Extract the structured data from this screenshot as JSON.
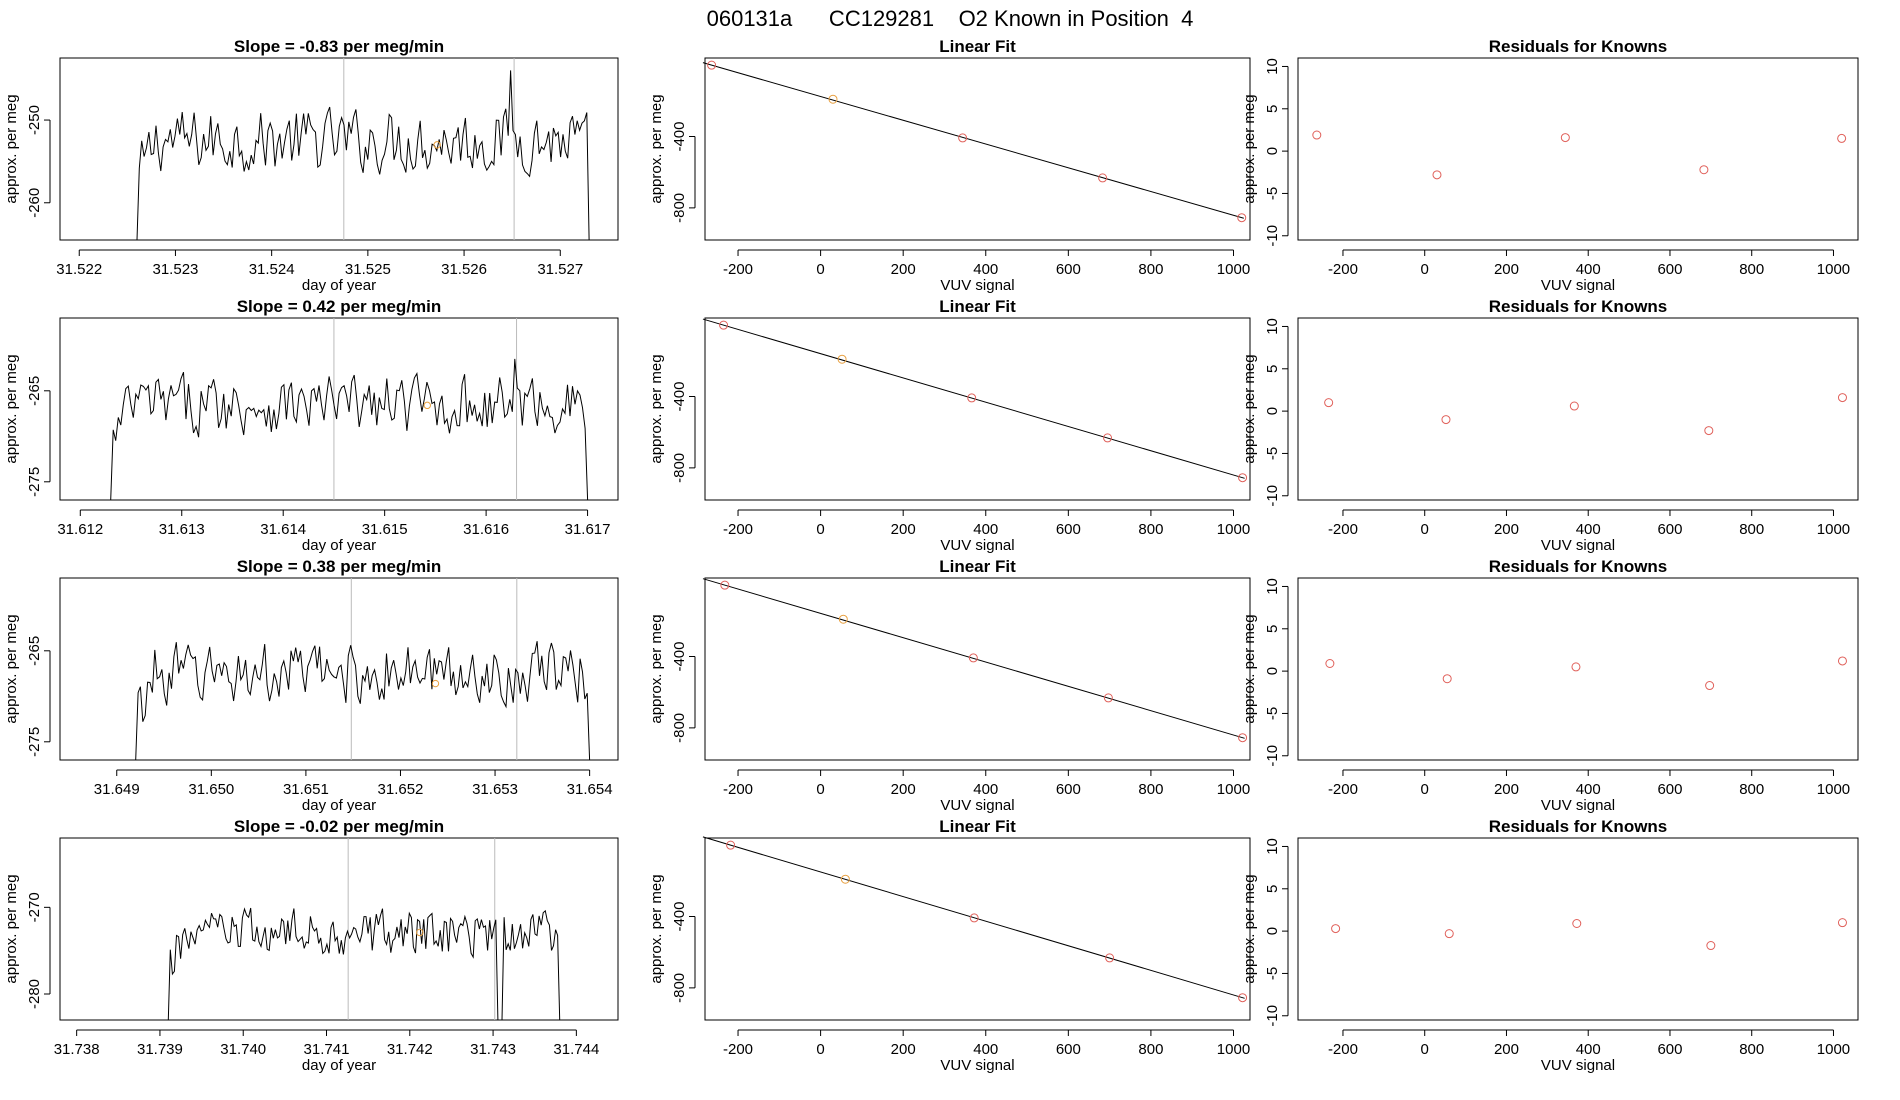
{
  "page_title": "060131a      CC129281    O2 Known in Position  4",
  "shared": {
    "ts_xlabel": "day of year",
    "ylabel": "approx. per meg",
    "fit_title": "Linear Fit",
    "fit_xlabel": "VUV signal",
    "resid_title": "Residuals for Knowns",
    "resid_xlabel": "VUV signal"
  },
  "colors": {
    "line": "#000000",
    "axis": "#000000",
    "marker": "#e0605a",
    "marker_orange": "#e8a040",
    "vline": "#bbbbbb"
  },
  "chart_data": [
    {
      "type": "line",
      "title": "Slope =  -0.83  per meg/min",
      "xlabel": "day of year",
      "ylabel": "approx. per meg",
      "xlim": [
        31.5218,
        31.5276
      ],
      "ylim": [
        -264.5,
        -242.5
      ],
      "xticks": [
        "31.522",
        "31.523",
        "31.524",
        "31.525",
        "31.526",
        "31.527"
      ],
      "yticks": [
        "-250",
        "-260"
      ],
      "x_start": 31.5226,
      "x_end": 31.5273,
      "series_level": -252.5,
      "noise_amp": 3.5,
      "vlines": [
        31.52475,
        31.52652
      ],
      "marker": [
        31.52572,
        -253.0
      ],
      "spikes": [
        [
          31.52648,
          -244.0
        ]
      ],
      "dips": []
    },
    {
      "type": "scatter_line",
      "title": "Linear Fit",
      "xlabel": "VUV signal",
      "ylabel": "approx. per meg",
      "xlim": [
        -280,
        1040
      ],
      "ylim": [
        -980,
        40
      ],
      "xticks": [
        -200,
        0,
        200,
        400,
        600,
        800,
        1000
      ],
      "yticks": [
        -400,
        -800
      ],
      "points": [
        [
          -264,
          0
        ],
        [
          30,
          -191
        ],
        [
          344,
          -408
        ],
        [
          683,
          -632
        ],
        [
          1020,
          -855
        ]
      ],
      "orange_index": 1
    },
    {
      "type": "scatter",
      "title": "Residuals for Knowns",
      "xlabel": "VUV signal",
      "ylabel": "approx. per meg",
      "xlim": [
        -310,
        1060
      ],
      "ylim": [
        -10.5,
        11
      ],
      "xticks": [
        -200,
        0,
        200,
        400,
        600,
        800,
        1000
      ],
      "yticks": [
        10,
        5,
        0,
        -5,
        -10
      ],
      "points": [
        [
          -264,
          1.9
        ],
        [
          30,
          -2.8
        ],
        [
          344,
          1.6
        ],
        [
          683,
          -2.2
        ],
        [
          1020,
          1.5
        ]
      ]
    },
    {
      "type": "line",
      "title": "Slope =  0.42  per meg/min",
      "xlabel": "day of year",
      "ylabel": "approx. per meg",
      "xlim": [
        31.6118,
        31.6173
      ],
      "ylim": [
        -277,
        -257
      ],
      "xticks": [
        "31.612",
        "31.613",
        "31.614",
        "31.615",
        "31.616",
        "31.617"
      ],
      "yticks": [
        "-265",
        "-275"
      ],
      "x_start": 31.6123,
      "x_end": 31.617,
      "series_level": -266.5,
      "noise_amp": 3.0,
      "vlines": [
        31.6145,
        31.6163
      ],
      "marker": [
        31.61542,
        -266.6
      ],
      "spikes": [
        [
          31.61628,
          -261.5
        ]
      ],
      "dips": []
    },
    {
      "type": "scatter_line",
      "title": "Linear Fit",
      "xlabel": "VUV signal",
      "ylabel": "approx. per meg",
      "xlim": [
        -280,
        1040
      ],
      "ylim": [
        -980,
        40
      ],
      "xticks": [
        -200,
        0,
        200,
        400,
        600,
        800,
        1000
      ],
      "yticks": [
        -400,
        -800
      ],
      "points": [
        [
          -235,
          0
        ],
        [
          52,
          -191
        ],
        [
          366,
          -408
        ],
        [
          695,
          -632
        ],
        [
          1022,
          -855
        ]
      ],
      "orange_index": 1
    },
    {
      "type": "scatter",
      "title": "Residuals for Knowns",
      "xlabel": "VUV signal",
      "ylabel": "approx. per meg",
      "xlim": [
        -310,
        1060
      ],
      "ylim": [
        -10.5,
        11
      ],
      "xticks": [
        -200,
        0,
        200,
        400,
        600,
        800,
        1000
      ],
      "yticks": [
        10,
        5,
        0,
        -5,
        -10
      ],
      "points": [
        [
          -235,
          1.0
        ],
        [
          52,
          -1.0
        ],
        [
          366,
          0.6
        ],
        [
          695,
          -2.3
        ],
        [
          1022,
          1.6
        ]
      ]
    },
    {
      "type": "line",
      "title": "Slope =  0.38  per meg/min",
      "xlabel": "day of year",
      "ylabel": "approx. per meg",
      "xlim": [
        31.6484,
        31.6543
      ],
      "ylim": [
        -277,
        -257
      ],
      "xticks": [
        "31.649",
        "31.650",
        "31.651",
        "31.652",
        "31.653",
        "31.654"
      ],
      "yticks": [
        "-265",
        "-275"
      ],
      "x_start": 31.6492,
      "x_end": 31.654,
      "series_level": -267.5,
      "noise_amp": 3.0,
      "vlines": [
        31.65148,
        31.65323
      ],
      "marker": [
        31.65237,
        -268.6
      ],
      "spikes": [],
      "dips": []
    },
    {
      "type": "scatter_line",
      "title": "Linear Fit",
      "xlabel": "VUV signal",
      "ylabel": "approx. per meg",
      "xlim": [
        -280,
        1040
      ],
      "ylim": [
        -980,
        40
      ],
      "xticks": [
        -200,
        0,
        200,
        400,
        600,
        800,
        1000
      ],
      "yticks": [
        -400,
        -800
      ],
      "points": [
        [
          -232,
          0
        ],
        [
          55,
          -191
        ],
        [
          370,
          -408
        ],
        [
          697,
          -632
        ],
        [
          1022,
          -855
        ]
      ],
      "orange_index": 1
    },
    {
      "type": "scatter",
      "title": "Residuals for Knowns",
      "xlabel": "VUV signal",
      "ylabel": "approx. per meg",
      "xlim": [
        -310,
        1060
      ],
      "ylim": [
        -10.5,
        11
      ],
      "xticks": [
        -200,
        0,
        200,
        400,
        600,
        800,
        1000
      ],
      "yticks": [
        10,
        5,
        0,
        -5,
        -10
      ],
      "points": [
        [
          -232,
          0.9
        ],
        [
          55,
          -0.9
        ],
        [
          370,
          0.5
        ],
        [
          697,
          -1.7
        ],
        [
          1022,
          1.2
        ]
      ]
    },
    {
      "type": "line",
      "title": "Slope =  -0.02  per meg/min",
      "xlabel": "day of year",
      "ylabel": "approx. per meg",
      "xlim": [
        31.7378,
        31.7445
      ],
      "ylim": [
        -283,
        -262
      ],
      "xticks": [
        "31.738",
        "31.739",
        "31.740",
        "31.741",
        "31.742",
        "31.743",
        "31.744"
      ],
      "yticks": [
        "-270",
        "-280"
      ],
      "x_start": 31.7391,
      "x_end": 31.7438,
      "series_level": -273.0,
      "noise_amp": 2.5,
      "vlines": [
        31.74126,
        31.74302
      ],
      "marker": [
        31.74212,
        -272.9
      ],
      "spikes": [],
      "dips": [
        [
          31.74308,
          -283.0
        ]
      ]
    },
    {
      "type": "scatter_line",
      "title": "Linear Fit",
      "xlabel": "VUV signal",
      "ylabel": "approx. per meg",
      "xlim": [
        -280,
        1040
      ],
      "ylim": [
        -980,
        40
      ],
      "xticks": [
        -200,
        0,
        200,
        400,
        600,
        800,
        1000
      ],
      "yticks": [
        -400,
        -800
      ],
      "points": [
        [
          -218,
          0
        ],
        [
          60,
          -191
        ],
        [
          372,
          -408
        ],
        [
          700,
          -632
        ],
        [
          1022,
          -855
        ]
      ],
      "orange_index": 1
    },
    {
      "type": "scatter",
      "title": "Residuals for Knowns",
      "xlabel": "VUV signal",
      "ylabel": "approx. per meg",
      "xlim": [
        -310,
        1060
      ],
      "ylim": [
        -10.5,
        11
      ],
      "xticks": [
        -200,
        0,
        200,
        400,
        600,
        800,
        1000
      ],
      "yticks": [
        10,
        5,
        0,
        -5,
        -10
      ],
      "points": [
        [
          -218,
          0.3
        ],
        [
          60,
          -0.3
        ],
        [
          372,
          0.9
        ],
        [
          700,
          -1.7
        ],
        [
          1022,
          1.0
        ]
      ]
    }
  ]
}
